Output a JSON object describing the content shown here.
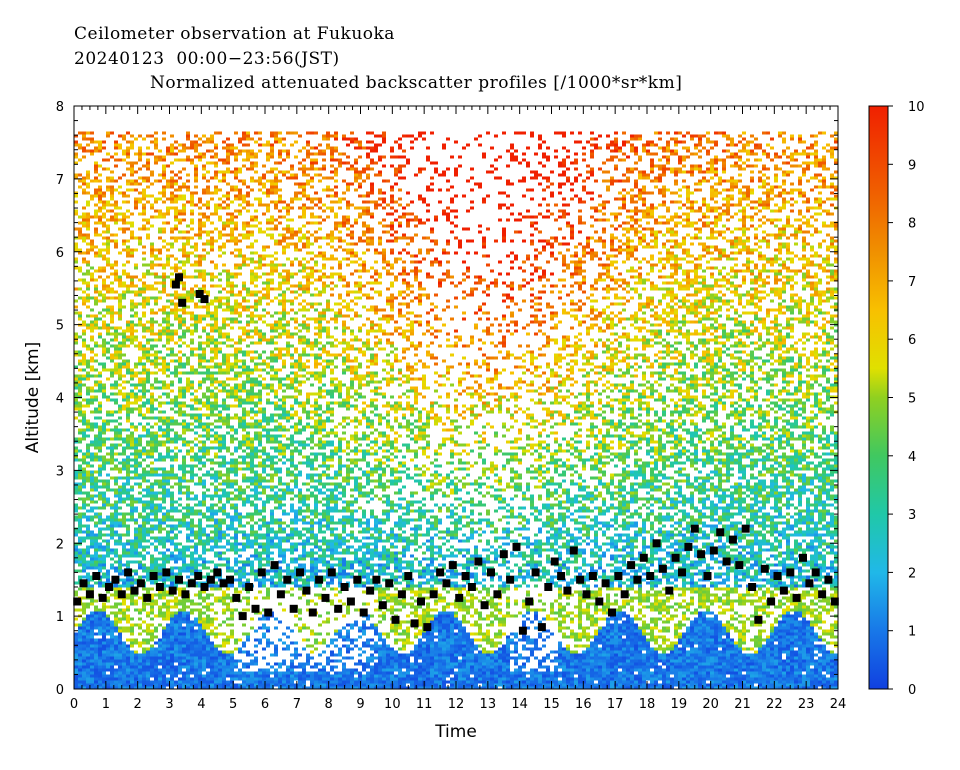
{
  "header": {
    "title_line1": "Ceilometer observation at Fukuoka",
    "title_line2": "20240123  00:00−23:56(JST)",
    "title_line3": "Normalized attenuated backscatter profiles [/1000*sr*km]"
  },
  "chart_data": {
    "type": "heatmap",
    "xlabel": "Time",
    "ylabel": "Altitude [km]",
    "xlim": [
      0,
      24
    ],
    "ylim": [
      0,
      8
    ],
    "x_ticks": [
      "0",
      "1",
      "2",
      "3",
      "4",
      "5",
      "6",
      "7",
      "8",
      "9",
      "10",
      "11",
      "12",
      "13",
      "14",
      "15",
      "16",
      "17",
      "18",
      "19",
      "20",
      "21",
      "22",
      "23",
      "24"
    ],
    "y_ticks": [
      "0",
      "1",
      "2",
      "3",
      "4",
      "5",
      "6",
      "7",
      "8"
    ],
    "colorbar": {
      "min": 0,
      "max": 10,
      "ticks": [
        "0",
        "1",
        "2",
        "3",
        "4",
        "5",
        "6",
        "7",
        "8",
        "9",
        "10"
      ],
      "stops": [
        {
          "v": 0,
          "color": "#1040e0"
        },
        {
          "v": 1,
          "color": "#1878e8"
        },
        {
          "v": 2,
          "color": "#20b8e8"
        },
        {
          "v": 3,
          "color": "#20c8a8"
        },
        {
          "v": 4,
          "color": "#40c860"
        },
        {
          "v": 5,
          "color": "#90d020"
        },
        {
          "v": 5.5,
          "color": "#e0e000"
        },
        {
          "v": 6.5,
          "color": "#f8c000"
        },
        {
          "v": 7.5,
          "color": "#f09000"
        },
        {
          "v": 8.5,
          "color": "#f06000"
        },
        {
          "v": 10,
          "color": "#f02000"
        }
      ]
    },
    "data_top_km": 7.65,
    "cloud_base_points": [
      {
        "x": 0.1,
        "y": 1.2
      },
      {
        "x": 0.3,
        "y": 1.45
      },
      {
        "x": 0.5,
        "y": 1.3
      },
      {
        "x": 0.7,
        "y": 1.55
      },
      {
        "x": 0.9,
        "y": 1.25
      },
      {
        "x": 1.1,
        "y": 1.4
      },
      {
        "x": 1.3,
        "y": 1.5
      },
      {
        "x": 1.5,
        "y": 1.3
      },
      {
        "x": 1.7,
        "y": 1.6
      },
      {
        "x": 1.9,
        "y": 1.35
      },
      {
        "x": 2.1,
        "y": 1.45
      },
      {
        "x": 2.3,
        "y": 1.25
      },
      {
        "x": 2.5,
        "y": 1.55
      },
      {
        "x": 2.7,
        "y": 1.4
      },
      {
        "x": 2.9,
        "y": 1.6
      },
      {
        "x": 3.1,
        "y": 1.35
      },
      {
        "x": 3.3,
        "y": 1.5
      },
      {
        "x": 3.5,
        "y": 1.3
      },
      {
        "x": 3.7,
        "y": 1.45
      },
      {
        "x": 3.9,
        "y": 1.55
      },
      {
        "x": 4.1,
        "y": 1.4
      },
      {
        "x": 4.3,
        "y": 1.5
      },
      {
        "x": 4.5,
        "y": 1.6
      },
      {
        "x": 4.7,
        "y": 1.45
      },
      {
        "x": 4.9,
        "y": 1.5
      },
      {
        "x": 5.1,
        "y": 1.25
      },
      {
        "x": 5.3,
        "y": 1.0
      },
      {
        "x": 5.5,
        "y": 1.4
      },
      {
        "x": 5.7,
        "y": 1.1
      },
      {
        "x": 5.9,
        "y": 1.6
      },
      {
        "x": 6.1,
        "y": 1.05
      },
      {
        "x": 6.3,
        "y": 1.7
      },
      {
        "x": 6.5,
        "y": 1.3
      },
      {
        "x": 6.7,
        "y": 1.5
      },
      {
        "x": 6.9,
        "y": 1.1
      },
      {
        "x": 7.1,
        "y": 1.6
      },
      {
        "x": 7.3,
        "y": 1.35
      },
      {
        "x": 7.5,
        "y": 1.05
      },
      {
        "x": 7.7,
        "y": 1.5
      },
      {
        "x": 7.9,
        "y": 1.25
      },
      {
        "x": 8.1,
        "y": 1.6
      },
      {
        "x": 8.3,
        "y": 1.1
      },
      {
        "x": 8.5,
        "y": 1.4
      },
      {
        "x": 8.7,
        "y": 1.2
      },
      {
        "x": 8.9,
        "y": 1.5
      },
      {
        "x": 9.1,
        "y": 1.05
      },
      {
        "x": 9.3,
        "y": 1.35
      },
      {
        "x": 9.5,
        "y": 1.5
      },
      {
        "x": 9.7,
        "y": 1.15
      },
      {
        "x": 9.9,
        "y": 1.45
      },
      {
        "x": 10.1,
        "y": 0.95
      },
      {
        "x": 10.3,
        "y": 1.3
      },
      {
        "x": 10.5,
        "y": 1.55
      },
      {
        "x": 10.7,
        "y": 0.9
      },
      {
        "x": 10.9,
        "y": 1.2
      },
      {
        "x": 11.1,
        "y": 0.85
      },
      {
        "x": 11.3,
        "y": 1.3
      },
      {
        "x": 11.5,
        "y": 1.6
      },
      {
        "x": 11.7,
        "y": 1.45
      },
      {
        "x": 11.9,
        "y": 1.7
      },
      {
        "x": 12.1,
        "y": 1.25
      },
      {
        "x": 12.3,
        "y": 1.55
      },
      {
        "x": 12.5,
        "y": 1.4
      },
      {
        "x": 12.7,
        "y": 1.75
      },
      {
        "x": 12.9,
        "y": 1.15
      },
      {
        "x": 13.1,
        "y": 1.6
      },
      {
        "x": 13.3,
        "y": 1.3
      },
      {
        "x": 13.5,
        "y": 1.85
      },
      {
        "x": 13.7,
        "y": 1.5
      },
      {
        "x": 13.9,
        "y": 1.95
      },
      {
        "x": 14.1,
        "y": 0.8
      },
      {
        "x": 14.3,
        "y": 1.2
      },
      {
        "x": 14.5,
        "y": 1.6
      },
      {
        "x": 14.7,
        "y": 0.85
      },
      {
        "x": 14.9,
        "y": 1.4
      },
      {
        "x": 15.1,
        "y": 1.75
      },
      {
        "x": 15.3,
        "y": 1.55
      },
      {
        "x": 15.5,
        "y": 1.35
      },
      {
        "x": 15.7,
        "y": 1.9
      },
      {
        "x": 15.9,
        "y": 1.5
      },
      {
        "x": 16.1,
        "y": 1.3
      },
      {
        "x": 16.3,
        "y": 1.55
      },
      {
        "x": 16.5,
        "y": 1.2
      },
      {
        "x": 16.7,
        "y": 1.45
      },
      {
        "x": 16.9,
        "y": 1.05
      },
      {
        "x": 17.1,
        "y": 1.55
      },
      {
        "x": 17.3,
        "y": 1.3
      },
      {
        "x": 17.5,
        "y": 1.7
      },
      {
        "x": 17.7,
        "y": 1.5
      },
      {
        "x": 17.9,
        "y": 1.8
      },
      {
        "x": 18.1,
        "y": 1.55
      },
      {
        "x": 18.3,
        "y": 2.0
      },
      {
        "x": 18.5,
        "y": 1.65
      },
      {
        "x": 18.7,
        "y": 1.35
      },
      {
        "x": 18.9,
        "y": 1.8
      },
      {
        "x": 19.1,
        "y": 1.6
      },
      {
        "x": 19.3,
        "y": 1.95
      },
      {
        "x": 19.5,
        "y": 2.2
      },
      {
        "x": 19.7,
        "y": 1.85
      },
      {
        "x": 19.9,
        "y": 1.55
      },
      {
        "x": 20.1,
        "y": 1.9
      },
      {
        "x": 20.3,
        "y": 2.15
      },
      {
        "x": 20.5,
        "y": 1.75
      },
      {
        "x": 20.7,
        "y": 2.05
      },
      {
        "x": 20.9,
        "y": 1.7
      },
      {
        "x": 21.1,
        "y": 2.2
      },
      {
        "x": 21.3,
        "y": 1.4
      },
      {
        "x": 21.5,
        "y": 0.95
      },
      {
        "x": 21.7,
        "y": 1.65
      },
      {
        "x": 21.9,
        "y": 1.2
      },
      {
        "x": 22.1,
        "y": 1.55
      },
      {
        "x": 22.3,
        "y": 1.35
      },
      {
        "x": 22.5,
        "y": 1.6
      },
      {
        "x": 22.7,
        "y": 1.25
      },
      {
        "x": 22.9,
        "y": 1.8
      },
      {
        "x": 23.1,
        "y": 1.45
      },
      {
        "x": 23.3,
        "y": 1.6
      },
      {
        "x": 23.5,
        "y": 1.3
      },
      {
        "x": 23.7,
        "y": 1.5
      },
      {
        "x": 23.9,
        "y": 1.2
      },
      {
        "x": 3.2,
        "y": 5.55
      },
      {
        "x": 3.3,
        "y": 5.65
      },
      {
        "x": 3.4,
        "y": 5.3
      },
      {
        "x": 3.95,
        "y": 5.42
      },
      {
        "x": 4.1,
        "y": 5.35
      }
    ]
  }
}
